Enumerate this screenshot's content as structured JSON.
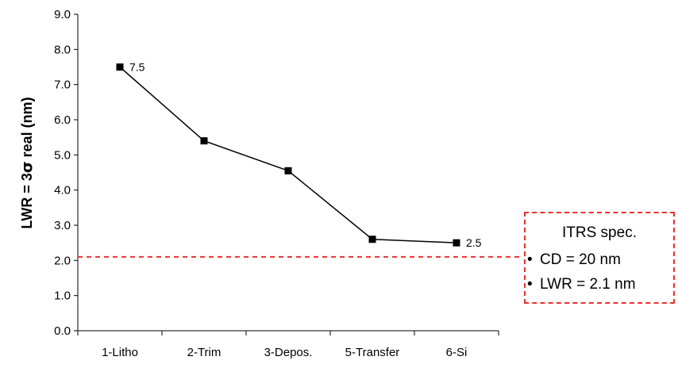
{
  "chart_data": {
    "type": "line",
    "categories": [
      "1-Litho",
      "2-Trim",
      "3-Depos.",
      "5-Transfer",
      "6-Si"
    ],
    "series": [
      {
        "values": [
          7.5,
          5.4,
          4.55,
          2.6,
          2.5
        ],
        "color": "#000000",
        "marker": "square"
      }
    ],
    "data_labels": [
      {
        "index": 0,
        "text": "7.5"
      },
      {
        "index": 4,
        "text": "2.5"
      }
    ],
    "reference_line": {
      "value": 2.1,
      "color": "#e8322e",
      "style": "dashed"
    },
    "ylabel_prefix": "LWR = 3",
    "ylabel_symbol": "σ",
    "ylabel_suffix": " real (nm)",
    "ylim": [
      0,
      9
    ],
    "yticks": [
      "0.0",
      "1.0",
      "2.0",
      "3.0",
      "4.0",
      "5.0",
      "6.0",
      "7.0",
      "8.0",
      "9.0"
    ],
    "grid": false
  },
  "spec_box": {
    "title": "ITRS spec.",
    "items": [
      "CD = 20 nm",
      "LWR = 2.1 nm"
    ],
    "bullet": "•",
    "border_color": "#e8322e"
  }
}
